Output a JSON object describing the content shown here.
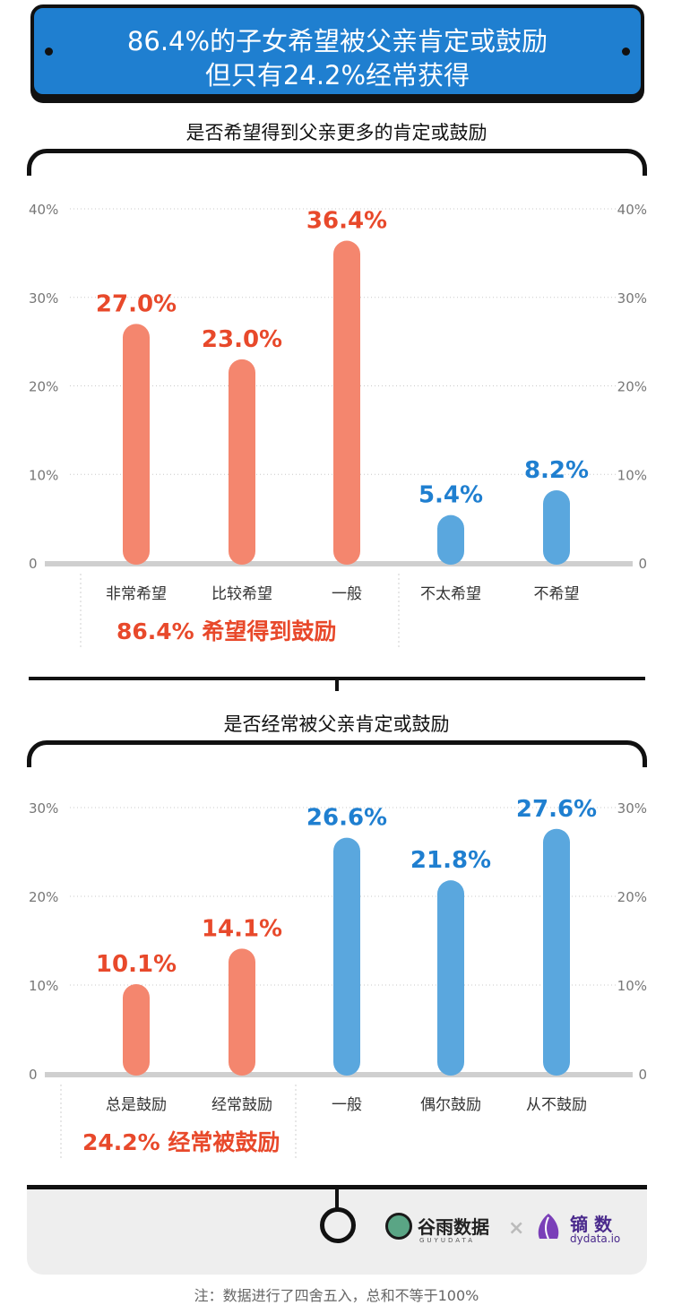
{
  "header": {
    "line1": "86.4%的子女希望被父亲肯定或鼓励",
    "line2": "但只有24.2%经常获得"
  },
  "colors": {
    "orange": "#f4866e",
    "blue": "#5aa7de",
    "orange_text": "#e8492b",
    "blue_text": "#1f7fd0"
  },
  "chart_data": [
    {
      "type": "bar",
      "title": "是否希望得到父亲更多的肯定或鼓励",
      "categories": [
        "非常希望",
        "比较希望",
        "一般",
        "不太希望",
        "不希望"
      ],
      "values": [
        27.0,
        23.0,
        36.4,
        5.4,
        8.2
      ],
      "value_labels": [
        "27.0%",
        "23.0%",
        "36.4%",
        "5.4%",
        "8.2%"
      ],
      "bar_colors": [
        "orange",
        "orange",
        "orange",
        "blue",
        "blue"
      ],
      "ylim": [
        0,
        40
      ],
      "yticks": [
        "0",
        "10%",
        "20%",
        "30%",
        "40%"
      ],
      "grid": true,
      "group_label": "86.4% 希望得到鼓励"
    },
    {
      "type": "bar",
      "title": "是否经常被父亲肯定或鼓励",
      "categories": [
        "总是鼓励",
        "经常鼓励",
        "一般",
        "偶尔鼓励",
        "从不鼓励"
      ],
      "values": [
        10.1,
        14.1,
        26.6,
        21.8,
        27.6
      ],
      "value_labels": [
        "10.1%",
        "14.1%",
        "26.6%",
        "21.8%",
        "27.6%"
      ],
      "bar_colors": [
        "orange",
        "orange",
        "blue",
        "blue",
        "blue"
      ],
      "ylim": [
        0,
        30
      ],
      "yticks": [
        "0",
        "10%",
        "20%",
        "30%"
      ],
      "grid": true,
      "group_label": "24.2% 经常被鼓励"
    }
  ],
  "footer": {
    "logo1_name": "谷雨数据",
    "logo1_sub": "GUYUDATA",
    "times": "×",
    "logo2_name": "镝 数",
    "logo2_sub": "dydata.io",
    "note": "注：数据进行了四舍五入，总和不等于100%"
  }
}
